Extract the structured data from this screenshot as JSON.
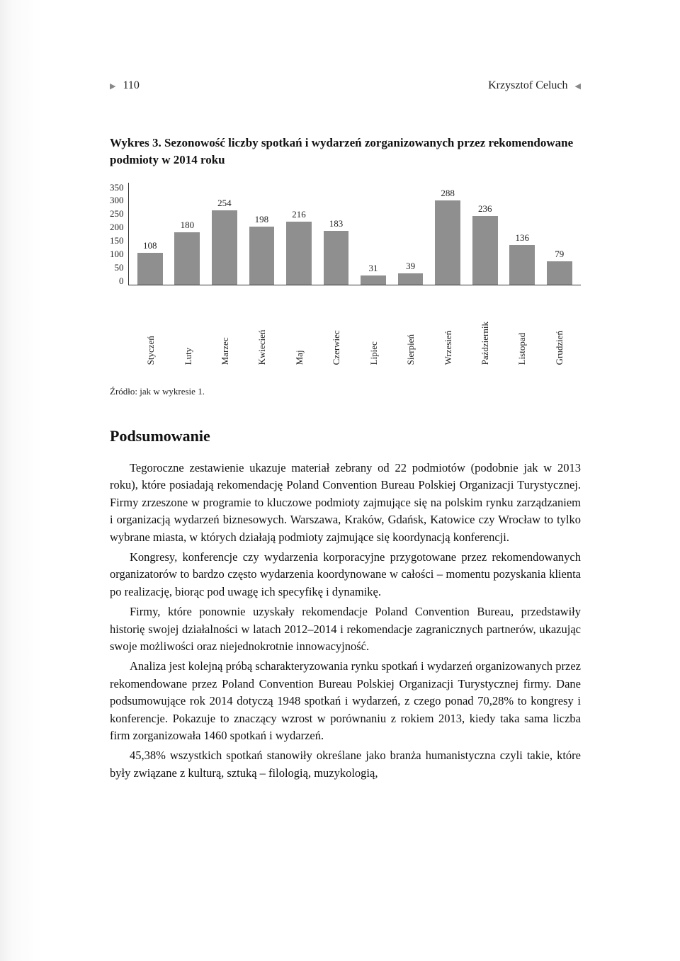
{
  "header": {
    "page_number": "110",
    "author": "Krzysztof Celuch"
  },
  "chart": {
    "type": "bar",
    "title": "Wykres 3. Sezonowość liczby spotkań i wydarzeń zorganizowanych przez rekomendowane podmioty w 2014 roku",
    "ylim_max": 350,
    "ytick_step": 50,
    "yticks": [
      "350",
      "300",
      "250",
      "200",
      "150",
      "100",
      "50",
      "0"
    ],
    "bar_color": "#8f8f8f",
    "axis_color": "#333333",
    "text_color": "#222222",
    "background_color": "#ffffff",
    "label_fontsize": 13,
    "bar_width_pct": 68,
    "categories": [
      "Styczeń",
      "Luty",
      "Marzec",
      "Kwiecień",
      "Maj",
      "Czerwiec",
      "Lipiec",
      "Sierpień",
      "Wrzesień",
      "Październik",
      "Listopad",
      "Grudzień"
    ],
    "values": [
      108,
      180,
      254,
      198,
      216,
      183,
      31,
      39,
      288,
      236,
      136,
      79
    ]
  },
  "source": "Źródło: jak w wykresie 1.",
  "section_heading": "Podsumowanie",
  "paragraphs": [
    "Tegoroczne zestawienie ukazuje materiał zebrany od 22 podmiotów (podobnie jak w 2013 roku), które posiadają rekomendację Poland Convention Bureau Polskiej Organizacji Turystycznej. Firmy zrzeszone w programie to kluczowe podmioty zajmujące się na polskim rynku zarządzaniem i organizacją wydarzeń biznesowych. Warszawa, Kraków, Gdańsk, Katowice czy Wrocław to tylko wybrane miasta, w których działają podmioty zajmujące się koordynacją konferencji.",
    "Kongresy, konferencje czy wydarzenia korporacyjne przygotowane przez rekomendowanych organizatorów to bardzo często wydarzenia koordynowane w całości – momentu pozyskania klienta po realizację, biorąc pod uwagę ich specyfikę i dynamikę.",
    "Firmy, które ponownie uzyskały rekomendacje Poland Convention Bureau, przedstawiły historię swojej działalności w latach 2012–2014 i rekomendacje zagranicznych partnerów, ukazując swoje możliwości oraz niejednokrotnie innowacyjność.",
    "Analiza jest kolejną próbą scharakteryzowania rynku spotkań i wydarzeń organizowanych przez rekomendowane przez Poland Convention Bureau Polskiej Organizacji Turystycznej firmy. Dane podsumowujące rok 2014 dotyczą 1948 spotkań i wydarzeń, z czego ponad 70,28% to kongresy i konferencje. Pokazuje to znaczący wzrost w porównaniu z rokiem 2013, kiedy taka sama liczba firm zorganizowała 1460 spotkań i wydarzeń.",
    "45,38% wszystkich spotkań stanowiły określane jako branża humanistyczna czyli takie, które były związane z kulturą, sztuką – filologią, muzykologią,"
  ]
}
